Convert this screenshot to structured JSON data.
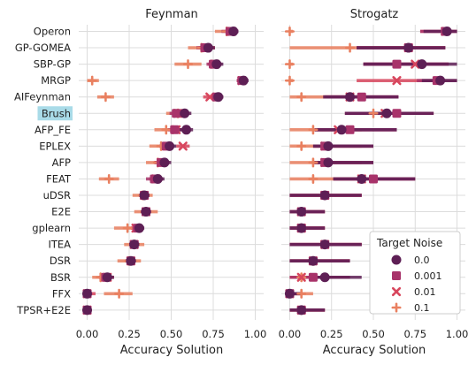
{
  "chart_data": {
    "type": "scatter",
    "xlabel": "Accuracy Solution",
    "xlim": [
      -0.05,
      1.05
    ],
    "xticks": [
      "0.00",
      "0.25",
      "0.50",
      "0.75",
      "1.00"
    ],
    "xtick_values": [
      0,
      0.25,
      0.5,
      0.75,
      1.0
    ],
    "highlighted_category": "Brush",
    "categories": [
      "Operon",
      "GP-GOMEA",
      "SBP-GP",
      "MRGP",
      "AIFeynman",
      "Brush",
      "AFP_FE",
      "EPLEX",
      "AFP",
      "FEAT",
      "uDSR",
      "E2E",
      "gplearn",
      "ITEA",
      "DSR",
      "BSR",
      "FFX",
      "TPSR+E2E"
    ],
    "legend": {
      "title": "Target Noise",
      "placement": "lower-right",
      "entries": [
        {
          "label": "0.0",
          "marker": "circle",
          "color": "#5e1f55"
        },
        {
          "label": "0.001",
          "marker": "square",
          "color": "#a8336a"
        },
        {
          "label": "0.01",
          "marker": "x",
          "color": "#d8465d"
        },
        {
          "label": "0.1",
          "marker": "plus",
          "color": "#e98060"
        }
      ]
    },
    "panels": [
      {
        "title": "Feynman",
        "series": [
          {
            "noise": "0.0",
            "values": [
              0.87,
              0.72,
              0.77,
              0.93,
              0.78,
              0.58,
              0.59,
              0.49,
              0.46,
              0.42,
              0.34,
              0.35,
              0.31,
              0.28,
              0.26,
              0.12,
              0.0,
              0.0
            ],
            "lo": [
              0.84,
              0.67,
              0.73,
              0.9,
              0.75,
              0.54,
              0.55,
              0.45,
              0.42,
              0.38,
              0.31,
              0.32,
              0.28,
              0.25,
              0.23,
              0.08,
              0.0,
              0.0
            ],
            "hi": [
              0.9,
              0.76,
              0.81,
              0.96,
              0.81,
              0.62,
              0.63,
              0.53,
              0.5,
              0.46,
              0.37,
              0.38,
              0.34,
              0.31,
              0.29,
              0.16,
              0.02,
              0.02
            ]
          },
          {
            "noise": "0.001",
            "values": [
              0.85,
              0.7,
              0.75,
              0.92,
              0.77,
              0.53,
              0.52,
              0.47,
              0.44,
              0.4,
              0.34,
              0.35,
              0.3,
              0.28,
              0.26,
              0.11,
              0.0,
              0.0
            ],
            "lo": [
              0.8,
              0.65,
              0.71,
              0.89,
              0.73,
              0.49,
              0.48,
              0.43,
              0.4,
              0.35,
              0.31,
              0.32,
              0.27,
              0.25,
              0.23,
              0.07,
              0.0,
              0.0
            ],
            "hi": [
              0.9,
              0.75,
              0.79,
              0.95,
              0.81,
              0.57,
              0.56,
              0.51,
              0.48,
              0.45,
              0.37,
              0.38,
              0.33,
              0.31,
              0.29,
              0.15,
              0.03,
              0.02
            ]
          },
          {
            "noise": "0.01",
            "values": [
              0.86,
              0.71,
              0.76,
              0.92,
              0.73,
              0.54,
              0.53,
              0.57,
              0.44,
              0.41,
              0.34,
              0.35,
              0.29,
              0.28,
              0.26,
              0.12,
              0.0,
              0.0
            ],
            "lo": [
              0.82,
              0.66,
              0.72,
              0.89,
              0.69,
              0.5,
              0.49,
              0.53,
              0.4,
              0.37,
              0.31,
              0.32,
              0.26,
              0.25,
              0.23,
              0.08,
              0.0,
              0.0
            ],
            "hi": [
              0.9,
              0.76,
              0.8,
              0.95,
              0.77,
              0.58,
              0.57,
              0.61,
              0.48,
              0.45,
              0.37,
              0.38,
              0.32,
              0.31,
              0.29,
              0.16,
              0.05,
              0.02
            ]
          },
          {
            "noise": "0.1",
            "values": [
              0.83,
              0.68,
              0.6,
              0.03,
              0.11,
              0.54,
              0.47,
              0.44,
              0.42,
              0.13,
              0.33,
              0.35,
              0.24,
              0.28,
              0.25,
              0.08,
              0.19,
              0.0
            ],
            "lo": [
              0.76,
              0.6,
              0.52,
              0.0,
              0.06,
              0.47,
              0.4,
              0.37,
              0.35,
              0.07,
              0.27,
              0.28,
              0.16,
              0.22,
              0.18,
              0.03,
              0.1,
              0.0
            ],
            "hi": [
              0.9,
              0.76,
              0.68,
              0.07,
              0.16,
              0.61,
              0.54,
              0.51,
              0.49,
              0.19,
              0.39,
              0.42,
              0.32,
              0.34,
              0.32,
              0.13,
              0.27,
              0.02
            ]
          }
        ]
      },
      {
        "title": "Strogatz",
        "series": [
          {
            "noise": "0.0",
            "values": [
              0.94,
              0.71,
              0.79,
              0.9,
              0.36,
              0.58,
              0.31,
              0.23,
              0.23,
              0.43,
              0.21,
              0.07,
              0.07,
              0.21,
              0.14,
              0.21,
              0.0,
              0.07
            ],
            "lo": [
              0.8,
              0.4,
              0.44,
              0.79,
              0.2,
              0.33,
              0.15,
              0.14,
              0.15,
              0.26,
              0.0,
              0.0,
              0.0,
              0.0,
              0.0,
              0.14,
              0.0,
              0.0
            ],
            "hi": [
              1.0,
              0.93,
              1.0,
              1.0,
              0.65,
              0.86,
              0.64,
              0.5,
              0.5,
              0.75,
              0.43,
              0.21,
              0.21,
              0.43,
              0.36,
              0.43,
              0.07,
              0.21
            ]
          },
          {
            "noise": "0.001",
            "values": [
              0.93,
              0.71,
              0.64,
              0.88,
              0.43,
              0.64,
              0.36,
              0.21,
              0.21,
              0.5,
              0.21,
              0.07,
              0.07,
              0.21,
              0.14,
              0.14,
              0.0,
              0.07
            ],
            "lo": [
              0.78,
              0.4,
              0.44,
              0.76,
              0.21,
              0.33,
              0.15,
              0.14,
              0.14,
              0.26,
              0.0,
              0.0,
              0.0,
              0.0,
              0.0,
              0.0,
              0.0,
              0.0
            ],
            "hi": [
              1.0,
              0.93,
              0.95,
              1.0,
              0.65,
              0.86,
              0.64,
              0.5,
              0.5,
              0.75,
              0.43,
              0.21,
              0.21,
              0.43,
              0.36,
              0.36,
              0.07,
              0.21
            ]
          },
          {
            "noise": "0.01",
            "values": [
              0.93,
              0.71,
              0.75,
              0.64,
              0.36,
              0.57,
              0.29,
              0.21,
              0.21,
              0.43,
              0.21,
              0.07,
              0.07,
              0.21,
              0.14,
              0.07,
              0.0,
              0.07
            ],
            "lo": [
              0.78,
              0.4,
              0.44,
              0.4,
              0.2,
              0.33,
              0.15,
              0.14,
              0.14,
              0.26,
              0.0,
              0.0,
              0.0,
              0.0,
              0.0,
              0.0,
              0.0,
              0.0
            ],
            "hi": [
              1.0,
              0.93,
              0.95,
              0.93,
              0.65,
              0.86,
              0.64,
              0.5,
              0.5,
              0.75,
              0.43,
              0.21,
              0.21,
              0.43,
              0.36,
              0.36,
              0.07,
              0.21
            ]
          },
          {
            "noise": "0.1",
            "values": [
              0.0,
              0.36,
              0.0,
              0.0,
              0.07,
              0.5,
              0.14,
              0.07,
              0.14,
              0.14,
              0.21,
              0.07,
              0.07,
              0.21,
              0.14,
              0.07,
              0.07,
              0.07
            ],
            "lo": [
              0.0,
              0.0,
              0.0,
              0.0,
              0.0,
              0.43,
              0.0,
              0.0,
              0.0,
              0.0,
              0.0,
              0.0,
              0.0,
              0.0,
              0.0,
              0.0,
              0.0,
              0.0
            ],
            "hi": [
              0.02,
              0.93,
              0.02,
              0.02,
              0.43,
              0.86,
              0.43,
              0.43,
              0.43,
              0.43,
              0.43,
              0.21,
              0.21,
              0.43,
              0.36,
              0.36,
              0.14,
              0.21
            ]
          }
        ]
      }
    ]
  }
}
